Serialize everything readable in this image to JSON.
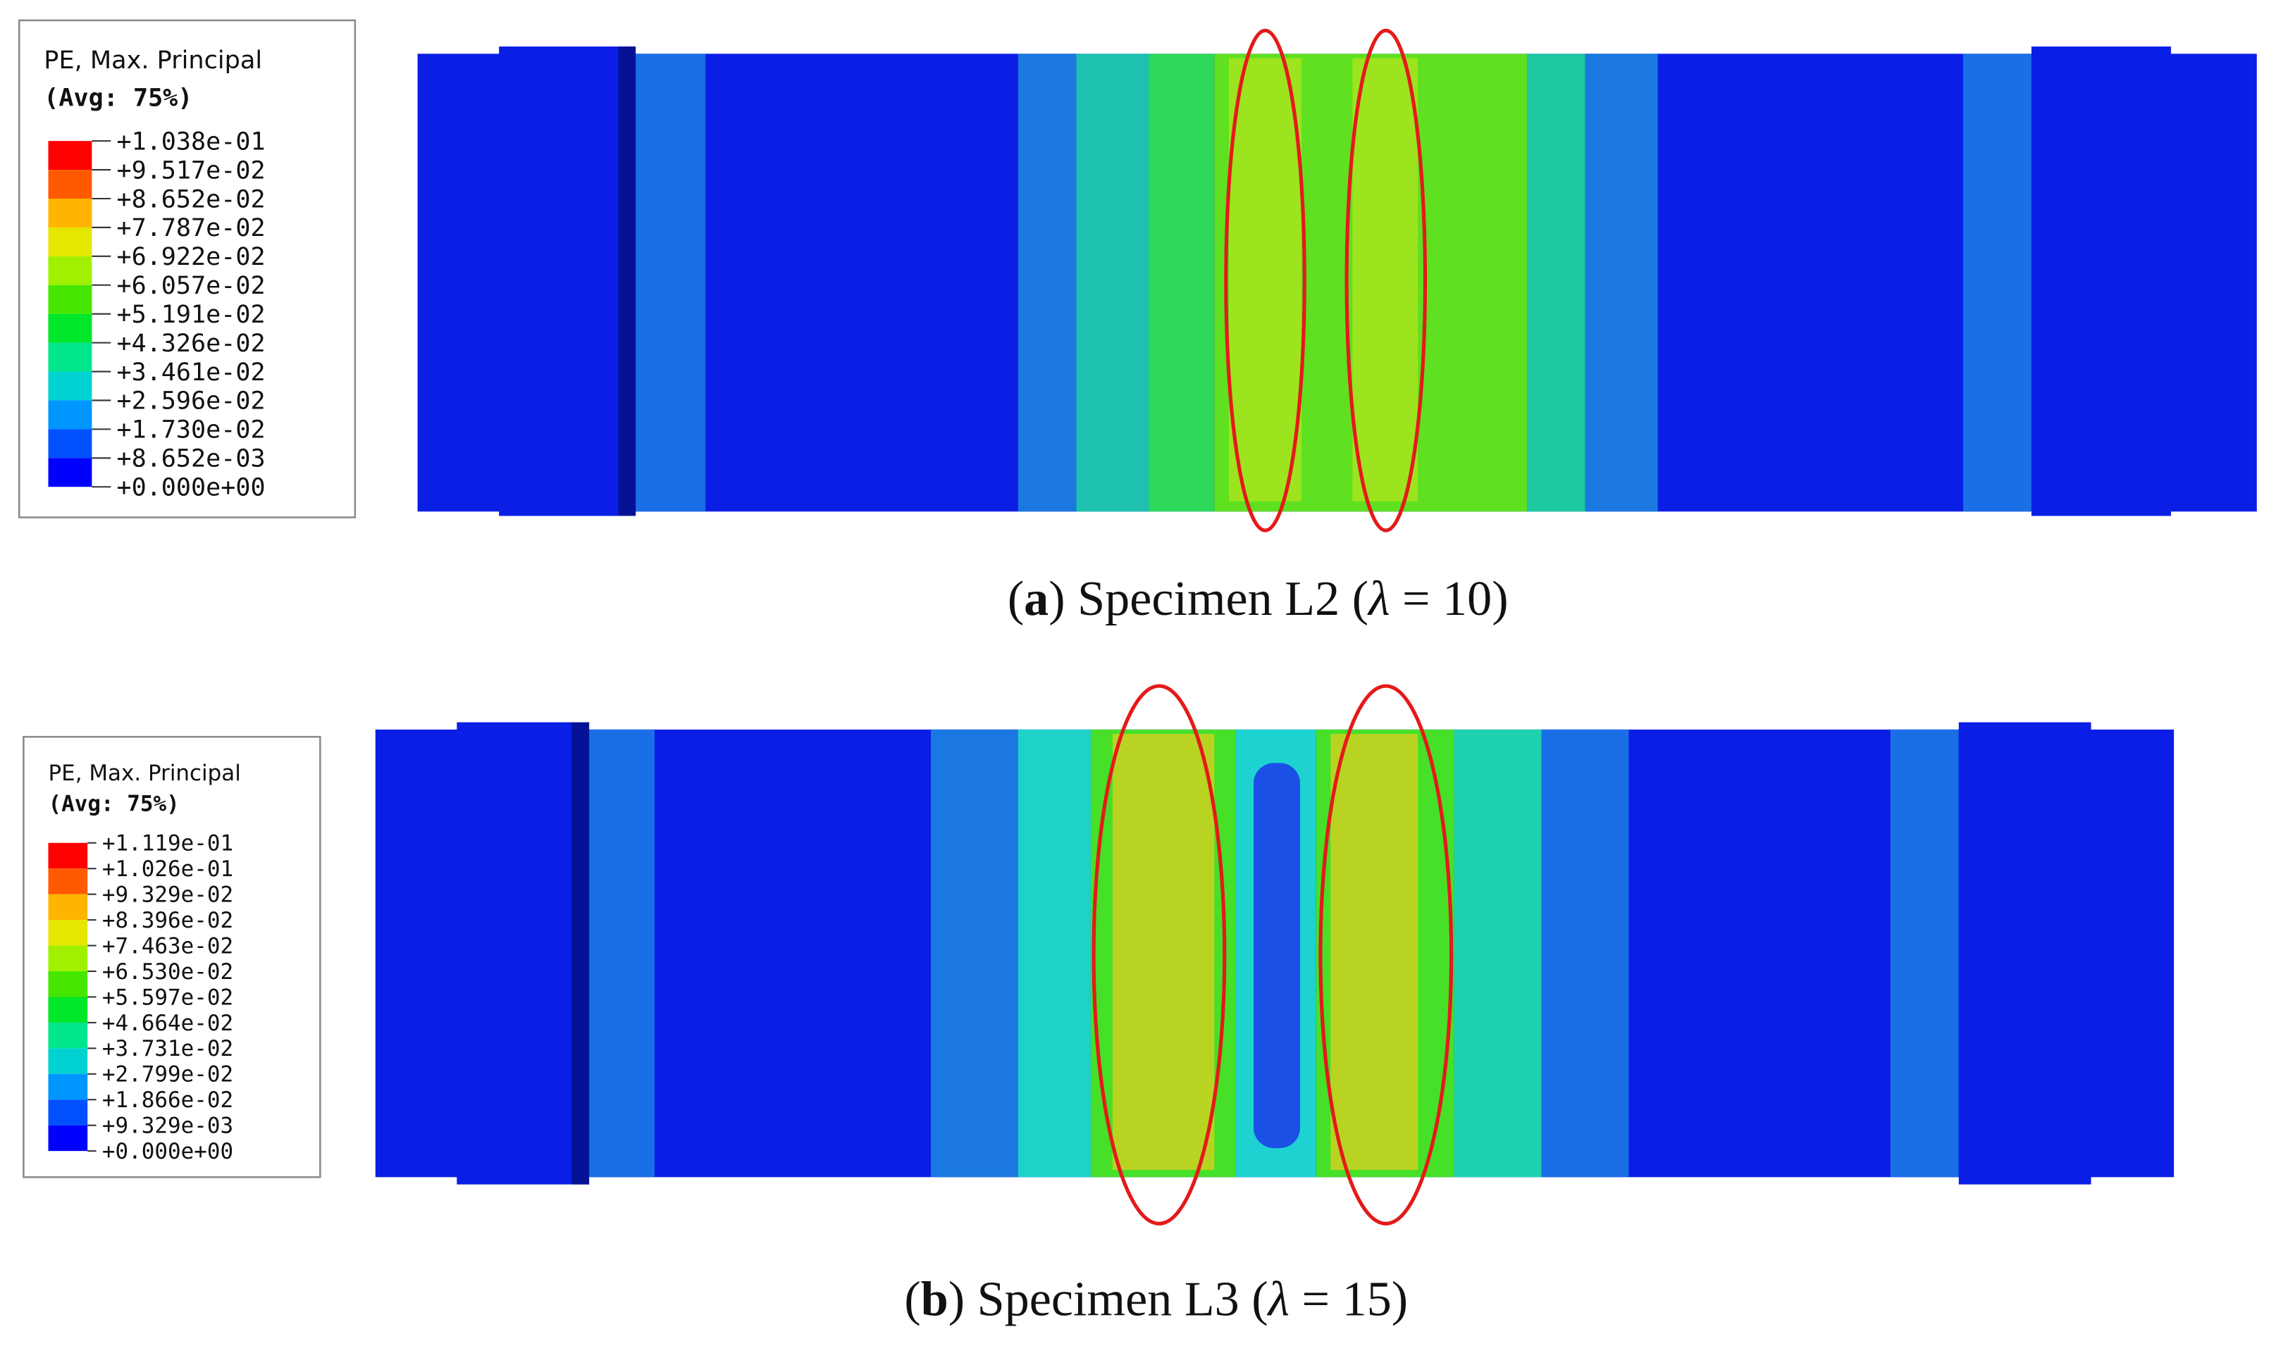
{
  "panels": [
    {
      "legend": {
        "title": "PE, Max. Principal",
        "subtitle": "(Avg: 75%)",
        "labels": [
          "+1.038e-01",
          "+9.517e-02",
          "+8.652e-02",
          "+7.787e-02",
          "+6.922e-02",
          "+6.057e-02",
          "+5.191e-02",
          "+4.326e-02",
          "+3.461e-02",
          "+2.596e-02",
          "+1.730e-02",
          "+8.652e-03",
          "+0.000e+00"
        ],
        "colors": [
          "#ff0000",
          "#ff5a00",
          "#ffb400",
          "#e6e600",
          "#a0f000",
          "#46e600",
          "#00e628",
          "#00e68c",
          "#00d2d2",
          "#0096ff",
          "#0050ff",
          "#0000ff"
        ]
      },
      "caption": {
        "open": "(",
        "letter": "a",
        "middle": ") Specimen L2 (",
        "symbol": "λ",
        "close": " = 10)"
      }
    },
    {
      "legend": {
        "title": "PE, Max. Principal",
        "subtitle": "(Avg: 75%)",
        "labels": [
          "+1.119e-01",
          "+1.026e-01",
          "+9.329e-02",
          "+8.396e-02",
          "+7.463e-02",
          "+6.530e-02",
          "+5.597e-02",
          "+4.664e-02",
          "+3.731e-02",
          "+2.799e-02",
          "+1.866e-02",
          "+9.329e-03",
          "+0.000e+00"
        ],
        "colors": [
          "#ff0000",
          "#ff5a00",
          "#ffb400",
          "#e6e600",
          "#a0f000",
          "#46e600",
          "#00e628",
          "#00e68c",
          "#00d2d2",
          "#0096ff",
          "#0050ff",
          "#0000ff"
        ]
      },
      "caption": {
        "open": "(",
        "letter": "b",
        "middle": ") Specimen L3 (",
        "symbol": "λ",
        "close": " = 15)"
      }
    }
  ]
}
